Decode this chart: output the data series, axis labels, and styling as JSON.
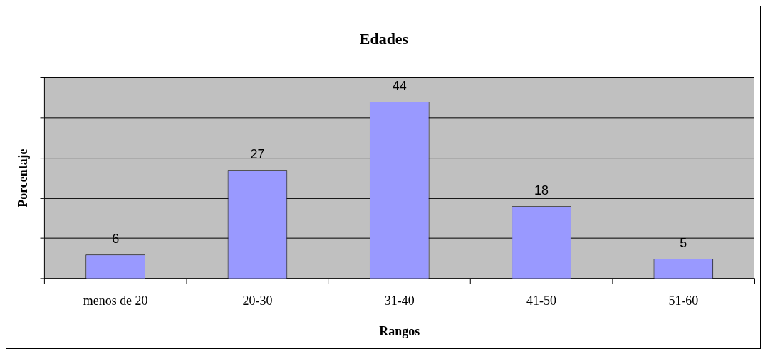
{
  "chart_data": {
    "type": "bar",
    "title": "Edades",
    "xlabel": "Rangos",
    "ylabel": "Porcentaje",
    "categories": [
      "menos de 20",
      "20-30",
      "31-40",
      "41-50",
      "51-60"
    ],
    "values": [
      6,
      27,
      44,
      18,
      5
    ],
    "color": "#9999ff",
    "ylim": [
      0,
      50
    ],
    "yticks": [
      {
        "value": 0,
        "label": null
      },
      {
        "value": 10,
        "label": null
      },
      {
        "value": 20,
        "label": null
      },
      {
        "value": 30,
        "label": null
      },
      {
        "value": 40,
        "label": null
      }
    ],
    "grid": "y",
    "tick_labels": "x",
    "data_labels": true
  }
}
